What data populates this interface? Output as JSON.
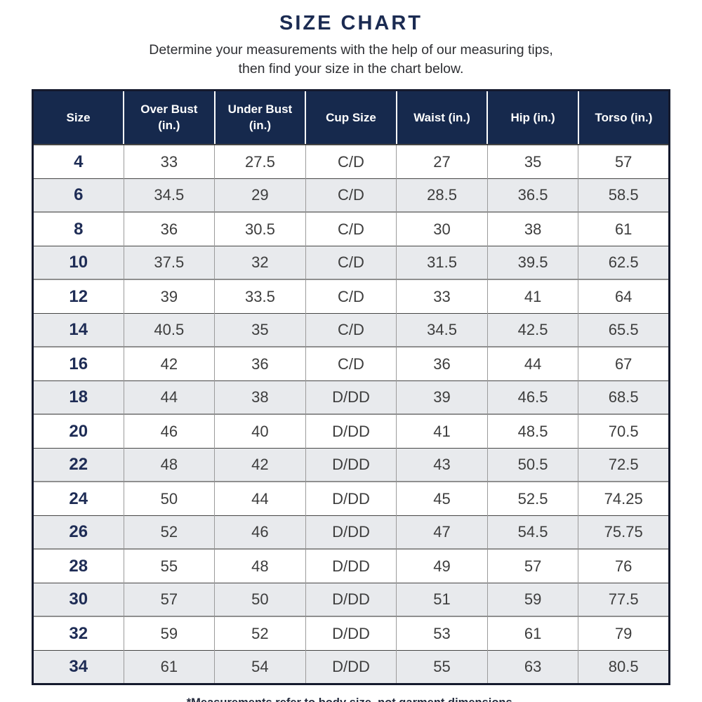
{
  "page": {
    "title": "SIZE CHART",
    "subtitle_lines": [
      "Determine your measurements with the help of our measuring tips,",
      "then find your size in the chart below."
    ],
    "footnote": "*Measurements refer to body size, not garment dimensions."
  },
  "colors": {
    "header_navy": "#16294d",
    "title_navy": "#1b2b52",
    "alt_row_gray": "#e8eaed",
    "data_text": "#3d3d3d",
    "size_text_navy": "#1e2c55"
  },
  "table": {
    "columns": [
      "Size",
      "Over Bust (in.)",
      "Under Bust (in.)",
      "Cup Size",
      "Waist (in.)",
      "Hip (in.)",
      "Torso (in.)"
    ],
    "rows": [
      [
        "4",
        "33",
        "27.5",
        "C/D",
        "27",
        "35",
        "57"
      ],
      [
        "6",
        "34.5",
        "29",
        "C/D",
        "28.5",
        "36.5",
        "58.5"
      ],
      [
        "8",
        "36",
        "30.5",
        "C/D",
        "30",
        "38",
        "61"
      ],
      [
        "10",
        "37.5",
        "32",
        "C/D",
        "31.5",
        "39.5",
        "62.5"
      ],
      [
        "12",
        "39",
        "33.5",
        "C/D",
        "33",
        "41",
        "64"
      ],
      [
        "14",
        "40.5",
        "35",
        "C/D",
        "34.5",
        "42.5",
        "65.5"
      ],
      [
        "16",
        "42",
        "36",
        "C/D",
        "36",
        "44",
        "67"
      ],
      [
        "18",
        "44",
        "38",
        "D/DD",
        "39",
        "46.5",
        "68.5"
      ],
      [
        "20",
        "46",
        "40",
        "D/DD",
        "41",
        "48.5",
        "70.5"
      ],
      [
        "22",
        "48",
        "42",
        "D/DD",
        "43",
        "50.5",
        "72.5"
      ],
      [
        "24",
        "50",
        "44",
        "D/DD",
        "45",
        "52.5",
        "74.25"
      ],
      [
        "26",
        "52",
        "46",
        "D/DD",
        "47",
        "54.5",
        "75.75"
      ],
      [
        "28",
        "55",
        "48",
        "D/DD",
        "49",
        "57",
        "76"
      ],
      [
        "30",
        "57",
        "50",
        "D/DD",
        "51",
        "59",
        "77.5"
      ],
      [
        "32",
        "59",
        "52",
        "D/DD",
        "53",
        "61",
        "79"
      ],
      [
        "34",
        "61",
        "54",
        "D/DD",
        "55",
        "63",
        "80.5"
      ]
    ]
  }
}
